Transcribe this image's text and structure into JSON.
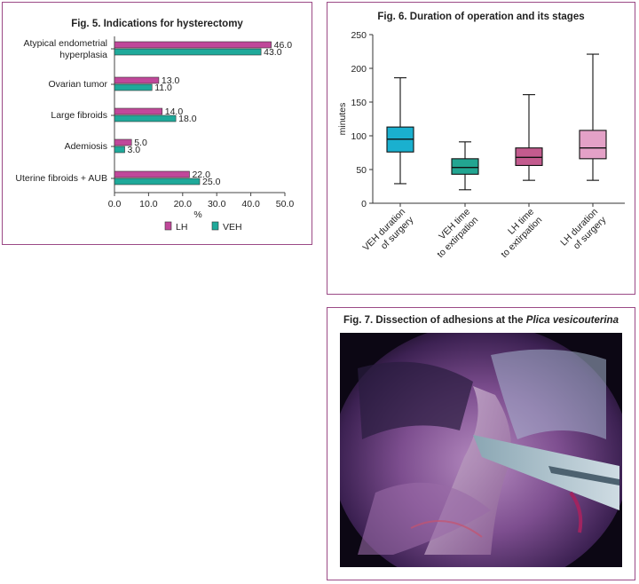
{
  "colors": {
    "lh": "#c0489a",
    "veh": "#1fa99a",
    "box_veh": "#1ab0cf",
    "box_veh_time": "#22a591",
    "box_lh_time": "#c35b8e",
    "box_lh_dur": "#e4a1c7",
    "border": "#9b4a86"
  },
  "fig5": {
    "title": "Fig. 5. Indications for hysterectomy",
    "chart_data": {
      "type": "bar",
      "orientation": "horizontal",
      "categories": [
        [
          "Atypical endometrial",
          "hyperplasia"
        ],
        [
          "Ovarian tumor"
        ],
        [
          "Large fibroids"
        ],
        [
          "Ademiosis"
        ],
        [
          "Uterine fibroids + AUB"
        ]
      ],
      "series": [
        {
          "name": "LH",
          "values": [
            46.0,
            13.0,
            14.0,
            5.0,
            22.0
          ]
        },
        {
          "name": "VEH",
          "values": [
            43.0,
            11.0,
            18.0,
            3.0,
            25.0
          ]
        }
      ],
      "value_labels": [
        [
          "46.0",
          "13.0",
          "14.0",
          "5.0",
          "22.0"
        ],
        [
          "43.0",
          "11.0",
          "18.0",
          "3.0",
          "25.0"
        ]
      ],
      "xlim": [
        0,
        50
      ],
      "xticks": [
        "0.0",
        "10.0",
        "20.0",
        "30.0",
        "40.0",
        "50.0"
      ],
      "xlabel": "%",
      "legend": "bottom"
    }
  },
  "fig6": {
    "title": "Fig. 6. Duration of operation and its stages",
    "chart_data": {
      "type": "box",
      "ylabel": "minutes",
      "ylim": [
        0,
        250
      ],
      "yticks": [
        "0",
        "50",
        "100",
        "150",
        "200",
        "250"
      ],
      "categories": [
        [
          "VEH duration",
          "of surgery"
        ],
        [
          "VEH time",
          "to extirpation"
        ],
        [
          "LH time",
          "to extirpation"
        ],
        [
          "LH duration",
          "of surgery"
        ]
      ],
      "boxes": [
        {
          "min": 29,
          "q1": 76,
          "median": 95,
          "q3": 113,
          "max": 186
        },
        {
          "min": 20,
          "q1": 43,
          "median": 53,
          "q3": 66,
          "max": 91
        },
        {
          "min": 34,
          "q1": 56,
          "median": 68,
          "q3": 82,
          "max": 161
        },
        {
          "min": 34,
          "q1": 66,
          "median": 82,
          "q3": 108,
          "max": 221
        }
      ]
    }
  },
  "fig7": {
    "title_prefix": "Fig. 7. Dissection of adhesions at the ",
    "title_italic": "Plica vesicouterina"
  }
}
